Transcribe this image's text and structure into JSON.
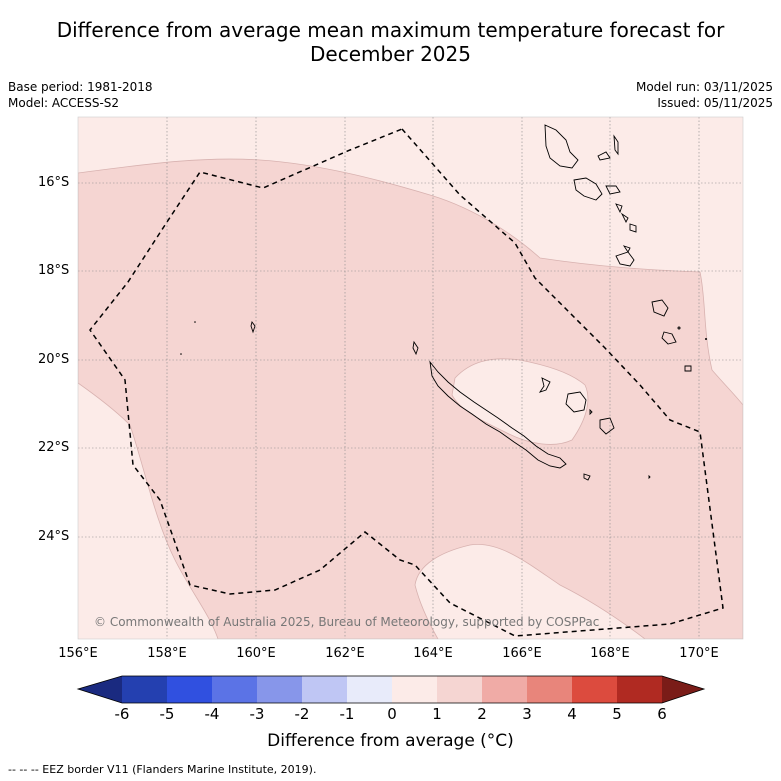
{
  "title": {
    "line1": "Difference from average mean maximum temperature forecast for",
    "line2": "December 2025"
  },
  "meta": {
    "base_period": "Base period: 1981-2018",
    "model": "Model: ACCESS-S2",
    "model_run": "Model run: 03/11/2025",
    "issued": "Issued: 05/11/2025"
  },
  "map": {
    "latitude_labels": [
      "16°S",
      "18°S",
      "20°S",
      "22°S",
      "24°S"
    ],
    "longitude_labels": [
      "156°E",
      "158°E",
      "160°E",
      "162°E",
      "164°E",
      "166°E",
      "168°E",
      "170°E"
    ],
    "copyright": "© Commonwealth of Australia 2025, Bureau of Meteorology, supported by COSPPac",
    "colors": {
      "band_0_1": "#fcebe8",
      "band_1_2": "#f5d5d2",
      "contour": "#d8b2b0"
    }
  },
  "colorbar": {
    "title": "Difference from average (°C)",
    "labels": [
      "-6",
      "-5",
      "-4",
      "-3",
      "-2",
      "-1",
      "0",
      "1",
      "2",
      "3",
      "4",
      "5",
      "6"
    ],
    "colors": [
      "#1a2a80",
      "#2440b0",
      "#3050e0",
      "#5b73e6",
      "#8796ea",
      "#bfc6f4",
      "#e8ebfa",
      "#fcebe8",
      "#f5d5d2",
      "#f0aba6",
      "#e8857b",
      "#dc4b3e",
      "#b02a22",
      "#7a1c18"
    ]
  },
  "footnote": "-- -- -- EEZ border V11 (Flanders Marine Institute, 2019)."
}
